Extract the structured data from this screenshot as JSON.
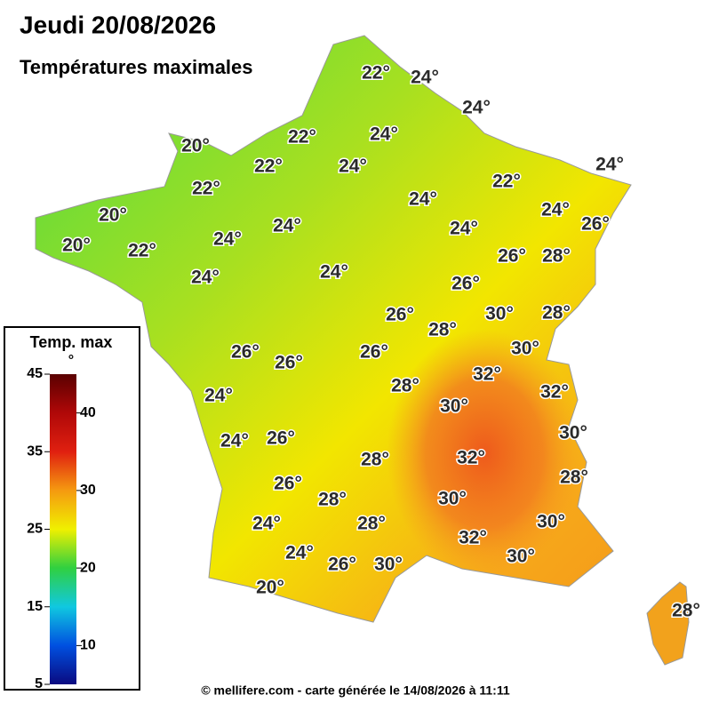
{
  "header": {
    "title": "Jeudi 20/08/2026",
    "subtitle": "Températures maximales"
  },
  "legend": {
    "title": "Temp. max",
    "title_unit": "°",
    "range": [
      5,
      45
    ],
    "ticks_left": [
      45,
      35,
      25,
      15,
      5
    ],
    "ticks_right": [
      40,
      30,
      20,
      10
    ]
  },
  "map": {
    "labels": [
      "22°",
      "24°",
      "24°",
      "22°",
      "24°",
      "20°",
      "22°",
      "24°",
      "24°",
      "22°",
      "24°",
      "22°",
      "20°",
      "24°",
      "24°",
      "24°",
      "26°",
      "20°",
      "24°",
      "22°",
      "26°",
      "28°",
      "24°",
      "24°",
      "26°",
      "26°",
      "30°",
      "28°",
      "28°",
      "30°",
      "26°",
      "26°",
      "26°",
      "32°",
      "24°",
      "28°",
      "32°",
      "30°",
      "30°",
      "24°",
      "26°",
      "28°",
      "32°",
      "28°",
      "26°",
      "28°",
      "30°",
      "24°",
      "28°",
      "30°",
      "32°",
      "24°",
      "26°",
      "30°",
      "30°",
      "20°",
      "28°"
    ]
  },
  "footer": {
    "credit": "© mellifere.com - carte générée le 14/08/2026 à 11:11"
  }
}
